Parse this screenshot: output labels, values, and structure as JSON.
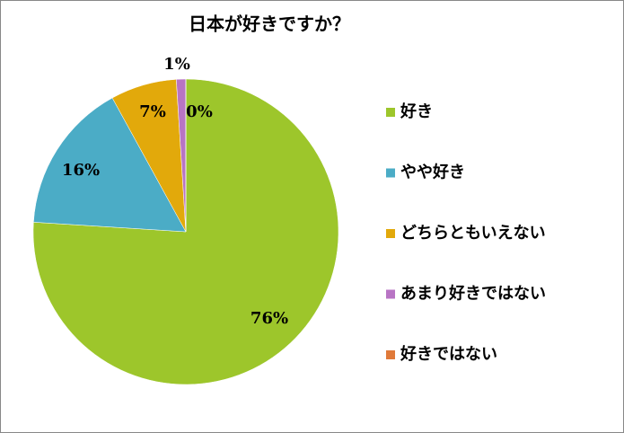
{
  "chart_data": {
    "type": "pie",
    "title": "日本が好きですか？",
    "categories": [
      "好き",
      "やや好き",
      "どちらともいえない",
      "あまり好きではない",
      "好きではない"
    ],
    "values": [
      76,
      16,
      7,
      1,
      0
    ],
    "value_labels": [
      "76%",
      "16%",
      "7%",
      "1%",
      "0%"
    ],
    "colors": [
      "#9dc62b",
      "#4bacc6",
      "#e2a90b",
      "#b874c4",
      "#e07a3a"
    ],
    "legend": "right"
  }
}
